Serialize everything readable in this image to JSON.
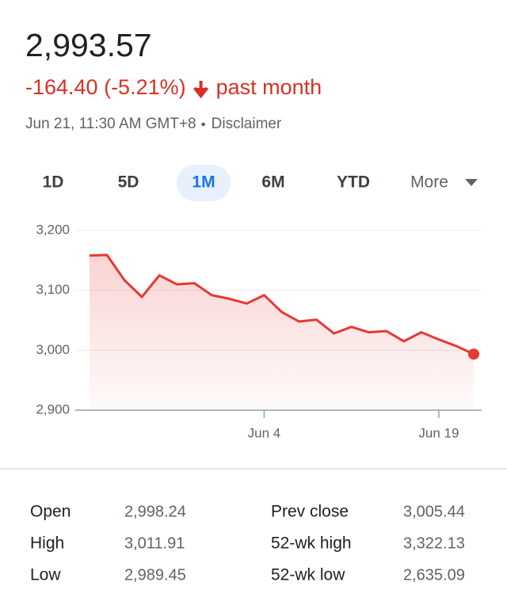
{
  "header": {
    "price": "2,993.57",
    "change": "-164.40 (-5.21%)",
    "period": "past month",
    "timestamp": "Jun 21, 11:30 AM GMT+8",
    "disclaimer": "Disclaimer"
  },
  "tabs": [
    "1D",
    "5D",
    "1M",
    "6M",
    "YTD",
    "More"
  ],
  "selected_tab": 2,
  "chart_data": {
    "type": "line",
    "categories": [
      null,
      null,
      null,
      null,
      null,
      null,
      null,
      null,
      null,
      null,
      "Jun 4",
      null,
      null,
      null,
      null,
      null,
      null,
      null,
      null,
      null,
      "Jun 19",
      null,
      null
    ],
    "values": [
      3158,
      3159,
      3117,
      3089,
      3125,
      3110,
      3112,
      3092,
      3086,
      3078,
      3092,
      3064,
      3048,
      3051,
      3028,
      3039,
      3030,
      3032,
      3015,
      3030,
      3018,
      3007,
      2993.57
    ],
    "color": "#e53935",
    "ylim": [
      2900,
      3200
    ],
    "yticks": [
      {
        "value": 2900,
        "label": "2,900"
      },
      {
        "value": 3000,
        "label": "3,000"
      },
      {
        "value": 3100,
        "label": "3,100"
      },
      {
        "value": 3200,
        "label": "3,200"
      }
    ],
    "grid": true
  },
  "stats": {
    "rows": [
      [
        "Open",
        "2,998.24",
        "Prev close",
        "3,005.44"
      ],
      [
        "High",
        "3,011.91",
        "52-wk high",
        "3,322.13"
      ],
      [
        "Low",
        "2,989.45",
        "52-wk low",
        "2,635.09"
      ]
    ]
  }
}
